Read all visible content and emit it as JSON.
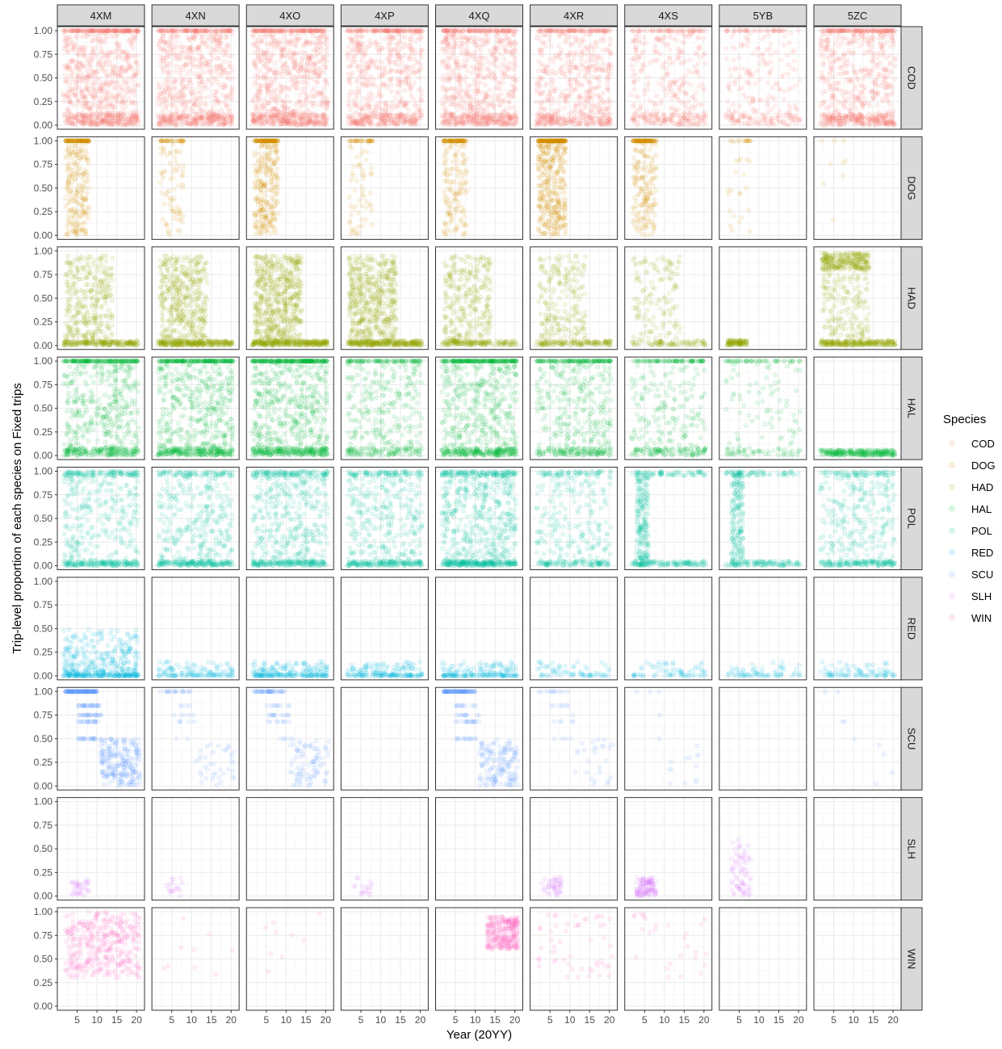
{
  "chart_data": {
    "type": "scatter",
    "xlabel": "Year (20YY)",
    "ylabel": "Trip-level proportion of each species on Fixed trips",
    "x_range": [
      1,
      21
    ],
    "y_range": [
      0,
      1
    ],
    "x_ticks": [
      5,
      10,
      15,
      20
    ],
    "x_tick_labels": [
      "5",
      "10",
      "15",
      "20"
    ],
    "y_ticks": [
      0,
      0.25,
      0.5,
      0.75,
      1
    ],
    "y_tick_labels": [
      "0.00",
      "0.25",
      "0.50",
      "0.75",
      "1.00"
    ],
    "grid": true,
    "columns": [
      "4XM",
      "4XN",
      "4XO",
      "4XP",
      "4XQ",
      "4XR",
      "4XS",
      "5YB",
      "5ZC"
    ],
    "rows": [
      "COD",
      "DOG",
      "HAD",
      "HAL",
      "POL",
      "RED",
      "SCU",
      "SLH",
      "WIN"
    ],
    "legend": {
      "title": "Species",
      "placement": "right",
      "entries": [
        "COD",
        "DOG",
        "HAD",
        "HAL",
        "POL",
        "RED",
        "SCU",
        "SLH",
        "WIN"
      ]
    },
    "colors": {
      "COD": "#F8766D",
      "DOG": "#D39200",
      "HAD": "#93AA00",
      "HAL": "#00BA38",
      "POL": "#00C19F",
      "RED": "#00B9E3",
      "SCU": "#619CFF",
      "SLH": "#DB72FB",
      "WIN": "#FF61C3"
    },
    "density": {
      "COD": [
        1.0,
        0.9,
        1.0,
        0.8,
        0.9,
        0.7,
        0.45,
        0.3,
        0.8
      ],
      "DOG": [
        0.35,
        0.12,
        0.4,
        0.1,
        0.25,
        0.6,
        0.3,
        0.04,
        0.01
      ],
      "HAD": [
        0.6,
        0.8,
        1.0,
        0.9,
        0.5,
        0.4,
        0.25,
        0.12,
        0.8
      ],
      "HAL": [
        0.8,
        0.9,
        1.0,
        0.5,
        0.9,
        0.6,
        0.4,
        0.2,
        0.3
      ],
      "POL": [
        0.6,
        0.6,
        0.7,
        0.6,
        0.9,
        0.4,
        0.45,
        0.4,
        0.5
      ],
      "RED": [
        0.5,
        0.15,
        0.25,
        0.2,
        0.2,
        0.08,
        0.08,
        0.08,
        0.1
      ],
      "SCU": [
        0.55,
        0.08,
        0.18,
        0.0,
        0.35,
        0.06,
        0.02,
        0.0,
        0.01
      ],
      "SLH": [
        0.04,
        0.02,
        0.0,
        0.02,
        0.0,
        0.05,
        0.12,
        0.08,
        0.0
      ],
      "WIN": [
        0.4,
        0.01,
        0.01,
        0.0,
        0.3,
        0.06,
        0.03,
        0.0,
        0.0
      ]
    },
    "point_alpha": 0.1
  }
}
